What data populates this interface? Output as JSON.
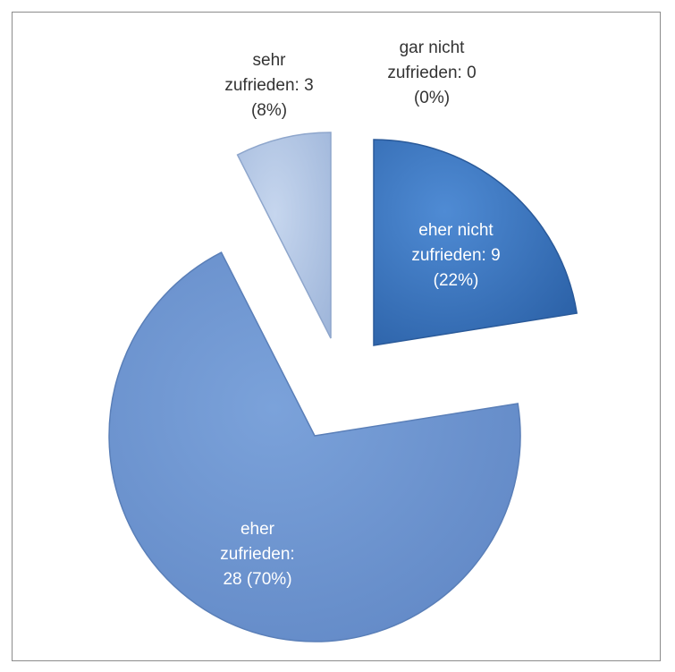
{
  "chart_data": {
    "type": "pie",
    "style": "exploded-3d",
    "slices": [
      {
        "label": "eher nicht zufrieden",
        "value": 9,
        "percent": 22,
        "text": "eher nicht\nzufrieden: 9\n(22%)",
        "color": "#3a75bd",
        "label_on_slice": true
      },
      {
        "label": "eher zufrieden",
        "value": 28,
        "percent": 70,
        "text": "eher\nzufrieden:\n28 (70%)",
        "color": "#6e94cf",
        "label_on_slice": true
      },
      {
        "label": "sehr zufrieden",
        "value": 3,
        "percent": 8,
        "text": "sehr\nzufrieden: 3\n(8%)",
        "color": "#b6c9e6",
        "label_on_slice": false
      },
      {
        "label": "gar nicht zufrieden",
        "value": 0,
        "percent": 0,
        "text": "gar nicht\nzufrieden: 0\n(0%)",
        "color": "#1f4e8c",
        "label_on_slice": false
      }
    ]
  }
}
